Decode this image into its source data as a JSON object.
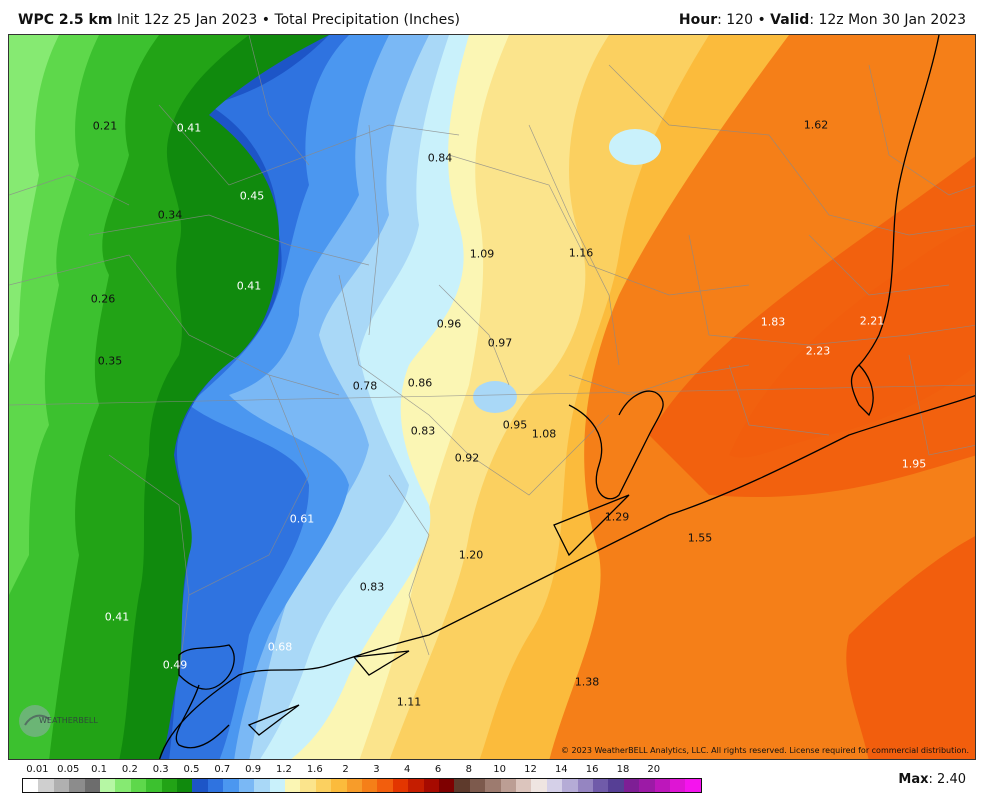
{
  "header": {
    "model": "WPC 2.5 km",
    "init": "Init 12z 25 Jan 2023",
    "bullet": "•",
    "product": "Total Precipitation (Inches)",
    "hour_label": "Hour",
    "hour_value": ": 120",
    "valid_label": "Valid",
    "valid_value": ": 12z Mon 30 Jan 2023"
  },
  "map": {
    "labels": [
      {
        "text": "0.21",
        "tone": "dark"
      },
      {
        "text": "0.41",
        "tone": "light"
      },
      {
        "text": "0.45",
        "tone": "light"
      },
      {
        "text": "0.34",
        "tone": "dark"
      },
      {
        "text": "0.26",
        "tone": "dark"
      },
      {
        "text": "0.41",
        "tone": "light"
      },
      {
        "text": "0.35",
        "tone": "dark"
      },
      {
        "text": "0.84",
        "tone": "dark"
      },
      {
        "text": "1.09",
        "tone": "dark"
      },
      {
        "text": "1.16",
        "tone": "dark"
      },
      {
        "text": "1.62",
        "tone": "dark"
      },
      {
        "text": "0.96",
        "tone": "dark"
      },
      {
        "text": "0.97",
        "tone": "dark"
      },
      {
        "text": "1.83",
        "tone": "light"
      },
      {
        "text": "2.21",
        "tone": "light"
      },
      {
        "text": "2.23",
        "tone": "light"
      },
      {
        "text": "0.78",
        "tone": "dark"
      },
      {
        "text": "0.86",
        "tone": "dark"
      },
      {
        "text": "0.83",
        "tone": "dark"
      },
      {
        "text": "0.95",
        "tone": "dark"
      },
      {
        "text": "1.08",
        "tone": "dark"
      },
      {
        "text": "0.92",
        "tone": "dark"
      },
      {
        "text": "1.95",
        "tone": "light"
      },
      {
        "text": "0.61",
        "tone": "light"
      },
      {
        "text": "1.29",
        "tone": "dark"
      },
      {
        "text": "1.55",
        "tone": "dark"
      },
      {
        "text": "1.20",
        "tone": "dark"
      },
      {
        "text": "0.83",
        "tone": "dark"
      },
      {
        "text": "0.41",
        "tone": "light"
      },
      {
        "text": "0.68",
        "tone": "light"
      },
      {
        "text": "0.49",
        "tone": "light"
      },
      {
        "text": "1.38",
        "tone": "dark"
      },
      {
        "text": "1.11",
        "tone": "dark"
      }
    ],
    "copyright": "© 2023 WeatherBELL Analytics, LLC. All rights reserved. License required for commercial distribution.",
    "logo_text": "WEATHERBELL"
  },
  "legend": {
    "labels": [
      "0.01",
      "0.05",
      "0.1",
      "0.2",
      "0.3",
      "0.5",
      "0.7",
      "0.9",
      "1.2",
      "1.6",
      "2",
      "3",
      "4",
      "6",
      "8",
      "10",
      "12",
      "14",
      "16",
      "18",
      "20"
    ],
    "colors": [
      "#ffffff",
      "#cfcfcf",
      "#b0b0b0",
      "#8c8c8c",
      "#6d6d6d",
      "#b6f7a4",
      "#86ea72",
      "#5ed84b",
      "#3cc12f",
      "#22a316",
      "#108a0d",
      "#1d55c7",
      "#2f73e0",
      "#4b97f0",
      "#7ab8f5",
      "#a9d8f7",
      "#c9f1fb",
      "#fbf6b4",
      "#fbe48c",
      "#fbd060",
      "#fbbb3c",
      "#f79c2a",
      "#f57f18",
      "#f25e0d",
      "#e33600",
      "#c51d00",
      "#a60a00",
      "#7e0000",
      "#5e3a2c",
      "#7d5a4d",
      "#9d7b6f",
      "#bc9e94",
      "#dcc5bd",
      "#efe5e1",
      "#d5d0e8",
      "#b5acd6",
      "#9585c1",
      "#705ba9",
      "#563f95",
      "#7e1f95",
      "#9c1aa6",
      "#bd17bb",
      "#de15d4",
      "#f514ee"
    ],
    "max_label": "Max",
    "max_value": ": 2.40"
  }
}
